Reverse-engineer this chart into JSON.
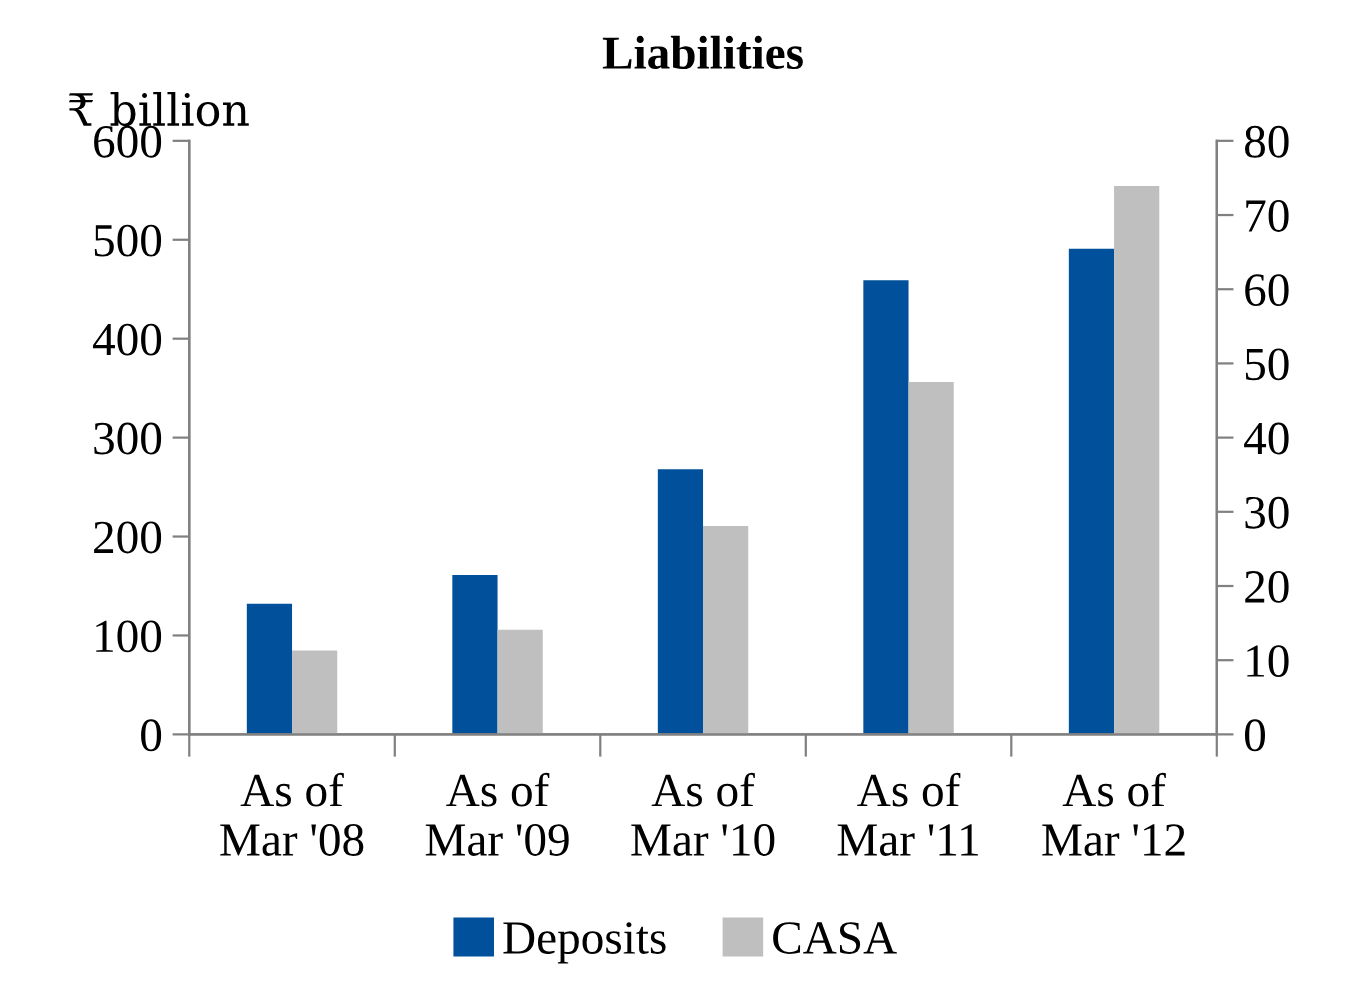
{
  "chart_data": {
    "type": "bar",
    "title": "Liabilities",
    "ylabel": "₹ billion",
    "categories": [
      "As of\nMar '08",
      "As of\nMar '09",
      "As of\nMar '10",
      "As of\nMar '11",
      "As of\nMar '12"
    ],
    "series": [
      {
        "name": "Deposits",
        "color": "#00509b",
        "values": [
          132,
          161,
          268,
          459,
          491
        ]
      },
      {
        "name": "CASA",
        "color": "#bfbfbf",
        "axis": "y2",
        "values": [
          11.3,
          14.1,
          28.1,
          47.5,
          73.9
        ]
      }
    ],
    "ylim": [
      0,
      600
    ],
    "yticks": [
      0,
      100,
      200,
      300,
      400,
      500,
      600
    ],
    "y2lim": [
      0,
      80
    ],
    "y2ticks": [
      0,
      10,
      20,
      30,
      40,
      50,
      60,
      70,
      80
    ],
    "grid": false,
    "legend": "bottom"
  }
}
